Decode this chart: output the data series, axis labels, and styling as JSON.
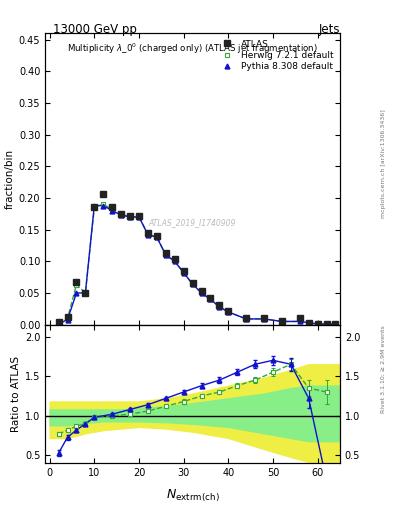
{
  "title_top": "13000 GeV pp",
  "title_right": "Jets",
  "main_title": "Multiplicity λ_0° (charged only) (ATLAS jet fragmentation)",
  "ylabel_main": "fraction/bin",
  "ylabel_ratio": "Ratio to ATLAS",
  "watermark": "ATLAS_2019_I1740909",
  "right_label": "mcplots.cern.ch [arXiv:1306.3436]",
  "rivet_label": "Rivet 3.1.10; ≥ 2.9M events",
  "atlas_x": [
    2,
    4,
    6,
    8,
    10,
    12,
    14,
    16,
    18,
    20,
    22,
    24,
    26,
    28,
    30,
    32,
    34,
    36,
    38,
    40,
    44,
    48,
    52,
    56,
    58,
    60,
    62,
    64
  ],
  "atlas_y": [
    0.004,
    0.012,
    0.068,
    0.05,
    0.185,
    0.207,
    0.185,
    0.175,
    0.172,
    0.172,
    0.145,
    0.14,
    0.113,
    0.103,
    0.085,
    0.066,
    0.053,
    0.042,
    0.031,
    0.022,
    0.01,
    0.01,
    0.005,
    0.01,
    0.002,
    0.001,
    0.001,
    0.0005
  ],
  "herwig_x": [
    2,
    4,
    6,
    8,
    10,
    12,
    14,
    16,
    18,
    20,
    22,
    24,
    26,
    28,
    30,
    32,
    34,
    36,
    38,
    40,
    44,
    48,
    52,
    56,
    60,
    64
  ],
  "herwig_y": [
    0.002,
    0.01,
    0.063,
    0.05,
    0.185,
    0.19,
    0.182,
    0.175,
    0.17,
    0.17,
    0.143,
    0.138,
    0.11,
    0.1,
    0.082,
    0.064,
    0.05,
    0.04,
    0.028,
    0.02,
    0.009,
    0.009,
    0.005,
    0.005,
    0.001,
    0.0005
  ],
  "pythia_x": [
    2,
    4,
    6,
    8,
    10,
    12,
    14,
    16,
    18,
    20,
    22,
    24,
    26,
    28,
    30,
    32,
    34,
    36,
    38,
    40,
    44,
    48,
    52,
    56,
    60,
    64
  ],
  "pythia_y": [
    0.001,
    0.008,
    0.05,
    0.05,
    0.188,
    0.188,
    0.18,
    0.173,
    0.17,
    0.17,
    0.142,
    0.138,
    0.11,
    0.1,
    0.082,
    0.064,
    0.05,
    0.04,
    0.028,
    0.02,
    0.009,
    0.009,
    0.005,
    0.005,
    0.001,
    0.0005
  ],
  "herwig_ratio_x": [
    2,
    4,
    6,
    8,
    10,
    14,
    18,
    22,
    26,
    30,
    34,
    38,
    42,
    46,
    50,
    54,
    58,
    62
  ],
  "herwig_ratio_y": [
    0.77,
    0.82,
    0.87,
    0.9,
    0.98,
    1.0,
    1.02,
    1.06,
    1.12,
    1.18,
    1.25,
    1.3,
    1.38,
    1.45,
    1.55,
    1.65,
    1.35,
    1.3
  ],
  "herwig_ratio_yerr": [
    0.03,
    0.02,
    0.02,
    0.02,
    0.02,
    0.02,
    0.02,
    0.02,
    0.02,
    0.03,
    0.03,
    0.03,
    0.03,
    0.04,
    0.05,
    0.07,
    0.1,
    0.15
  ],
  "pythia_ratio_x": [
    2,
    4,
    6,
    8,
    10,
    14,
    18,
    22,
    26,
    30,
    34,
    38,
    42,
    46,
    50,
    54,
    58,
    62
  ],
  "pythia_ratio_y": [
    0.53,
    0.73,
    0.82,
    0.9,
    0.98,
    1.02,
    1.08,
    1.14,
    1.22,
    1.3,
    1.38,
    1.45,
    1.55,
    1.65,
    1.7,
    1.65,
    1.22,
    0.18
  ],
  "pythia_ratio_yerr": [
    0.04,
    0.03,
    0.02,
    0.02,
    0.02,
    0.02,
    0.02,
    0.02,
    0.02,
    0.03,
    0.03,
    0.04,
    0.04,
    0.05,
    0.06,
    0.08,
    0.12,
    0.15
  ],
  "band_yellow_x": [
    0,
    2,
    4,
    6,
    8,
    10,
    12,
    16,
    20,
    26,
    32,
    40,
    48,
    54,
    58,
    65
  ],
  "band_yellow_lo": [
    0.72,
    0.72,
    0.72,
    0.75,
    0.78,
    0.8,
    0.82,
    0.84,
    0.86,
    0.84,
    0.8,
    0.72,
    0.58,
    0.48,
    0.42,
    0.42
  ],
  "band_yellow_hi": [
    1.18,
    1.18,
    1.18,
    1.18,
    1.18,
    1.18,
    1.18,
    1.18,
    1.18,
    1.22,
    1.28,
    1.38,
    1.48,
    1.58,
    1.65,
    1.65
  ],
  "band_green_x": [
    0,
    2,
    4,
    6,
    8,
    10,
    12,
    16,
    20,
    26,
    32,
    40,
    48,
    54,
    58,
    65
  ],
  "band_green_lo": [
    0.88,
    0.88,
    0.88,
    0.9,
    0.91,
    0.92,
    0.93,
    0.93,
    0.93,
    0.92,
    0.9,
    0.86,
    0.78,
    0.72,
    0.68,
    0.68
  ],
  "band_green_hi": [
    1.08,
    1.08,
    1.08,
    1.08,
    1.08,
    1.08,
    1.08,
    1.08,
    1.1,
    1.12,
    1.16,
    1.22,
    1.28,
    1.35,
    1.38,
    1.38
  ],
  "xlim": [
    -1,
    65
  ],
  "xticks": [
    0,
    10,
    20,
    30,
    40,
    50,
    60
  ],
  "ylim_main": [
    0,
    0.46
  ],
  "yticks_main": [
    0.0,
    0.05,
    0.1,
    0.15,
    0.2,
    0.25,
    0.3,
    0.35,
    0.4,
    0.45
  ],
  "ylim_ratio": [
    0.4,
    2.15
  ],
  "yticks_ratio": [
    0.5,
    1.0,
    1.5,
    2.0
  ],
  "atlas_color": "#222222",
  "herwig_color": "#33aa33",
  "pythia_color": "#1111cc",
  "band_yellow_color": "#eeee44",
  "band_green_color": "#88ee88",
  "bg_color": "#ffffff"
}
